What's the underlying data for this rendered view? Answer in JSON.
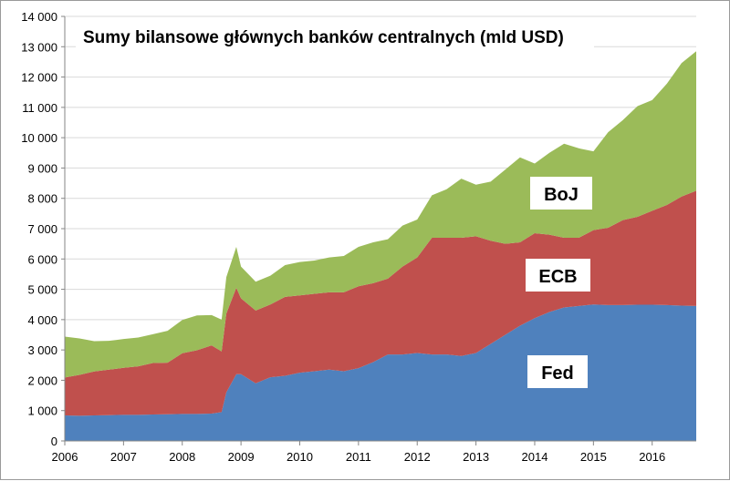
{
  "chart_data": {
    "type": "area",
    "stacked": true,
    "title": "Sumy bilansowe głównych banków centralnych (mld USD)",
    "xlabel": "",
    "ylabel": "",
    "xlim": [
      2006.0,
      2016.75
    ],
    "ylim": [
      0,
      14000
    ],
    "grid": true,
    "legend": "inline labels inside areas",
    "x_ticks": [
      2006,
      2007,
      2008,
      2009,
      2010,
      2011,
      2012,
      2013,
      2014,
      2015,
      2016
    ],
    "x_tick_labels": [
      "2006",
      "2007",
      "2008",
      "2009",
      "2010",
      "2011",
      "2012",
      "2013",
      "2014",
      "2015",
      "2016"
    ],
    "y_ticks": [
      0,
      1000,
      2000,
      3000,
      4000,
      5000,
      6000,
      7000,
      8000,
      9000,
      10000,
      11000,
      12000,
      13000,
      14000
    ],
    "y_tick_labels": [
      "0",
      "1 000",
      "2 000",
      "3 000",
      "4 000",
      "5 000",
      "6 000",
      "7 000",
      "8 000",
      "9 000",
      "10 000",
      "11 000",
      "12 000",
      "13 000",
      "14 000"
    ],
    "x": [
      2006.0,
      2006.25,
      2006.5,
      2006.75,
      2007.0,
      2007.25,
      2007.5,
      2007.75,
      2008.0,
      2008.25,
      2008.5,
      2008.67,
      2008.75,
      2008.92,
      2009.0,
      2009.25,
      2009.5,
      2009.75,
      2010.0,
      2010.25,
      2010.5,
      2010.75,
      2011.0,
      2011.25,
      2011.5,
      2011.75,
      2012.0,
      2012.25,
      2012.5,
      2012.75,
      2013.0,
      2013.25,
      2013.5,
      2013.75,
      2014.0,
      2014.25,
      2014.5,
      2014.75,
      2015.0,
      2015.25,
      2015.5,
      2015.75,
      2016.0,
      2016.25,
      2016.5,
      2016.75
    ],
    "series": [
      {
        "name": "Fed",
        "color": "#4f81bd",
        "values": [
          840,
          830,
          840,
          850,
          860,
          860,
          870,
          880,
          890,
          890,
          900,
          950,
          1600,
          2200,
          2200,
          1900,
          2100,
          2150,
          2250,
          2300,
          2350,
          2300,
          2400,
          2600,
          2850,
          2850,
          2900,
          2850,
          2850,
          2800,
          2900,
          3200,
          3500,
          3800,
          4050,
          4250,
          4400,
          4450,
          4500,
          4480,
          4480,
          4490,
          4490,
          4480,
          4460,
          4450
        ]
      },
      {
        "name": "ECB",
        "color": "#c0504d",
        "values": [
          1250,
          1350,
          1450,
          1500,
          1550,
          1600,
          1700,
          1700,
          2000,
          2100,
          2250,
          2000,
          2600,
          2850,
          2500,
          2400,
          2400,
          2600,
          2550,
          2550,
          2550,
          2600,
          2700,
          2600,
          2500,
          2900,
          3150,
          3850,
          3850,
          3900,
          3850,
          3400,
          3000,
          2750,
          2800,
          2550,
          2300,
          2250,
          2450,
          2550,
          2800,
          2900,
          3100,
          3300,
          3600,
          3800
        ]
      },
      {
        "name": "BoJ",
        "color": "#9bbb59",
        "values": [
          1350,
          1200,
          1000,
          950,
          950,
          950,
          950,
          1050,
          1100,
          1150,
          1000,
          1050,
          1200,
          1350,
          1050,
          950,
          950,
          1050,
          1100,
          1100,
          1150,
          1200,
          1300,
          1350,
          1300,
          1350,
          1250,
          1400,
          1600,
          1950,
          1700,
          1950,
          2450,
          2800,
          2300,
          2700,
          3100,
          2950,
          2600,
          3150,
          3300,
          3650,
          3650,
          4000,
          4400,
          4600
        ]
      }
    ]
  },
  "area_labels": [
    "BoJ",
    "ECB",
    "Fed"
  ]
}
